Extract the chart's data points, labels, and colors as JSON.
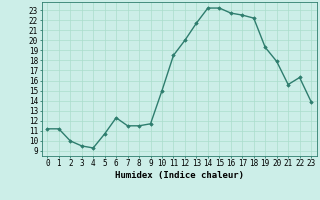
{
  "x": [
    0,
    1,
    2,
    3,
    4,
    5,
    6,
    7,
    8,
    9,
    10,
    11,
    12,
    13,
    14,
    15,
    16,
    17,
    18,
    19,
    20,
    21,
    22,
    23
  ],
  "y": [
    11.2,
    11.2,
    10.0,
    9.5,
    9.3,
    10.7,
    12.3,
    11.5,
    11.5,
    11.7,
    15.0,
    18.5,
    20.0,
    21.7,
    23.2,
    23.2,
    22.7,
    22.5,
    22.2,
    19.3,
    17.9,
    15.6,
    16.3,
    13.9
  ],
  "line_color": "#2e7d6e",
  "marker": "D",
  "marker_size": 1.8,
  "line_width": 1.0,
  "bg_color": "#cceee8",
  "grid_color": "#aaddcc",
  "xlabel": "Humidex (Indice chaleur)",
  "ylabel_ticks": [
    9,
    10,
    11,
    12,
    13,
    14,
    15,
    16,
    17,
    18,
    19,
    20,
    21,
    22,
    23
  ],
  "ylim": [
    8.5,
    23.8
  ],
  "xlim": [
    -0.5,
    23.5
  ],
  "xlabel_fontsize": 6.5,
  "tick_fontsize": 5.5
}
